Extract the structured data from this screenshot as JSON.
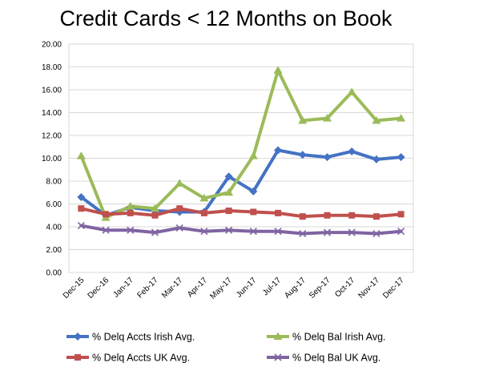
{
  "chart_data": {
    "type": "line",
    "title": "Credit Cards < 12 Months on Book",
    "xlabel": "",
    "ylabel": "",
    "ylim": [
      0,
      20
    ],
    "yticks": [
      "0.00",
      "2.00",
      "4.00",
      "6.00",
      "8.00",
      "10.00",
      "12.00",
      "14.00",
      "16.00",
      "18.00",
      "20.00"
    ],
    "categories": [
      "Dec-15",
      "Dec-16",
      "Jan-17",
      "Feb-17",
      "Mar-17",
      "Apr-17",
      "May-17",
      "Jun-17",
      "Jul-17",
      "Aug-17",
      "Sep-17",
      "Oct-17",
      "Nov-17",
      "Dec-17"
    ],
    "grid": "horizontal",
    "legend_position": "bottom",
    "series": [
      {
        "name": "% Delq Accts Irish Avg.",
        "color": "#4472C4",
        "marker": "diamond",
        "values": [
          6.6,
          5.0,
          5.7,
          5.4,
          5.3,
          5.3,
          8.4,
          7.1,
          10.7,
          10.3,
          10.1,
          10.6,
          9.9,
          10.1
        ]
      },
      {
        "name": "% Delq Bal Irish Avg.",
        "color": "#9BBB59",
        "marker": "triangle",
        "values": [
          10.2,
          4.8,
          5.8,
          5.6,
          7.8,
          6.5,
          7.0,
          10.2,
          17.7,
          13.3,
          13.5,
          15.8,
          13.3,
          13.5
        ]
      },
      {
        "name": "% Delq Accts UK Avg.",
        "color": "#C0504D",
        "marker": "square",
        "values": [
          5.6,
          5.1,
          5.2,
          5.0,
          5.6,
          5.2,
          5.4,
          5.3,
          5.2,
          4.9,
          5.0,
          5.0,
          4.9,
          5.1
        ]
      },
      {
        "name": "% Delq Bal UK Avg.",
        "color": "#8064A2",
        "marker": "x",
        "values": [
          4.1,
          3.7,
          3.7,
          3.5,
          3.9,
          3.6,
          3.7,
          3.6,
          3.6,
          3.4,
          3.5,
          3.5,
          3.4,
          3.6
        ]
      }
    ]
  }
}
